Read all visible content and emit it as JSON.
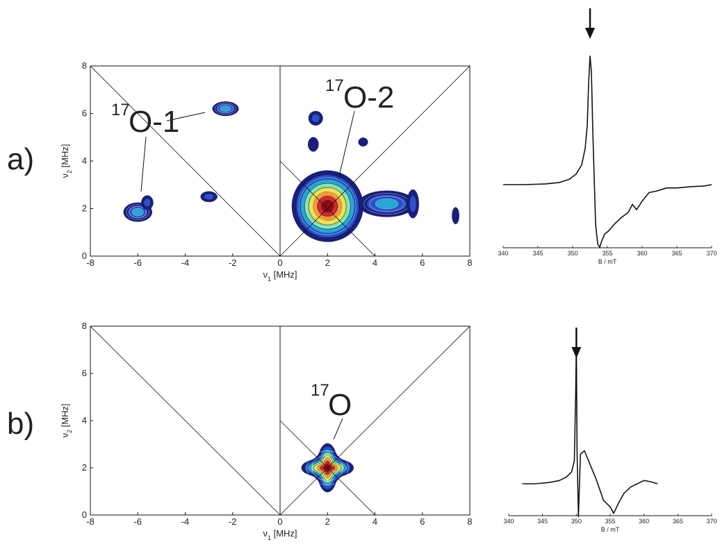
{
  "panels": [
    {
      "label": "a)",
      "annotations": [
        {
          "sup": "17",
          "text": "O-1"
        },
        {
          "sup": "17",
          "text": "O-2"
        }
      ]
    },
    {
      "label": "b)",
      "annotations": [
        {
          "sup": "17",
          "text": "O"
        }
      ]
    }
  ],
  "chart_data": [
    {
      "type": "contour",
      "panel": "a)",
      "xlabel_main": "ν",
      "xlabel_sub": "1",
      "xlabel_unit": " [MHz]",
      "ylabel_main": "ν",
      "ylabel_sub": "2",
      "ylabel_unit": " [MHz]",
      "xlim": [
        -8,
        8
      ],
      "ylim": [
        0,
        8
      ],
      "xticks": [
        "-8",
        "-6",
        "-4",
        "-2",
        "0",
        "2",
        "4",
        "6",
        "8"
      ],
      "yticks": [
        "0",
        "2",
        "4",
        "6",
        "8"
      ],
      "colors": [
        "#1a1f7a",
        "#2b52c7",
        "#24a7d6",
        "#7fe0a0",
        "#f3e24a",
        "#f29a2e",
        "#d8262b",
        "#8a1010"
      ],
      "peaks": [
        {
          "x": -2.3,
          "y": 6.2,
          "rx": 0.55,
          "ry": 0.3,
          "levels": 3
        },
        {
          "x": -6.0,
          "y": 1.85,
          "rx": 0.6,
          "ry": 0.4,
          "levels": 3
        },
        {
          "x": -5.6,
          "y": 2.25,
          "rx": 0.25,
          "ry": 0.3,
          "levels": 2
        },
        {
          "x": -3.0,
          "y": 2.5,
          "rx": 0.35,
          "ry": 0.22,
          "levels": 2
        },
        {
          "x": 1.5,
          "y": 5.8,
          "rx": 0.3,
          "ry": 0.3,
          "levels": 2
        },
        {
          "x": 3.5,
          "y": 4.8,
          "rx": 0.2,
          "ry": 0.18,
          "levels": 1
        },
        {
          "x": 1.4,
          "y": 4.7,
          "rx": 0.22,
          "ry": 0.3,
          "levels": 1
        },
        {
          "x": 2.0,
          "y": 2.1,
          "rx": 1.5,
          "ry": 1.5,
          "levels": 8
        },
        {
          "x": 4.5,
          "y": 2.2,
          "rx": 1.2,
          "ry": 0.55,
          "levels": 3
        },
        {
          "x": 5.6,
          "y": 2.2,
          "rx": 0.25,
          "ry": 0.6,
          "levels": 2
        },
        {
          "x": 7.4,
          "y": 1.7,
          "rx": 0.15,
          "ry": 0.35,
          "levels": 1
        }
      ]
    },
    {
      "type": "line",
      "panel": "a)",
      "xlabel": "B / mT",
      "xlim": [
        340,
        370
      ],
      "xticks": [
        "340",
        "345",
        "350",
        "355",
        "360",
        "365",
        "370"
      ],
      "marker_field": 352.5,
      "x": [
        340,
        343,
        346,
        348,
        349.5,
        350.5,
        351.3,
        351.8,
        352.1,
        352.3,
        352.5,
        352.7,
        352.9,
        353.1,
        353.3,
        353.6,
        353.9,
        354.2,
        354.6,
        355.2,
        356,
        357,
        358,
        358.6,
        359.2,
        360,
        361,
        362,
        363.5,
        365,
        367,
        369,
        370
      ],
      "y": [
        0,
        0,
        0.01,
        0.03,
        0.08,
        0.16,
        0.3,
        0.55,
        0.9,
        1.55,
        1.95,
        1.7,
        0.8,
        0.1,
        -0.6,
        -0.9,
        -0.95,
        -0.85,
        -0.75,
        -0.7,
        -0.6,
        -0.5,
        -0.42,
        -0.3,
        -0.38,
        -0.25,
        -0.12,
        -0.1,
        -0.05,
        -0.05,
        -0.03,
        -0.02,
        0.0
      ]
    },
    {
      "type": "contour",
      "panel": "b)",
      "xlabel_main": "ν",
      "xlabel_sub": "1",
      "xlabel_unit": " [MHz]",
      "ylabel_main": "ν",
      "ylabel_sub": "2",
      "ylabel_unit": " [MHz]",
      "xlim": [
        -8,
        8
      ],
      "ylim": [
        0,
        8
      ],
      "xticks": [
        "-8",
        "-6",
        "-4",
        "-2",
        "0",
        "2",
        "4",
        "6",
        "8"
      ],
      "yticks": [
        "0",
        "2",
        "4",
        "6",
        "8"
      ],
      "colors": [
        "#1a1f7a",
        "#2b52c7",
        "#24a7d6",
        "#7fe0a0",
        "#f3e24a",
        "#f29a2e",
        "#d8262b",
        "#8a1010"
      ],
      "peaks": [
        {
          "x": 2.0,
          "y": 2.0,
          "rx": 1.1,
          "ry": 0.9,
          "levels": 8,
          "shape": "star"
        }
      ]
    },
    {
      "type": "line",
      "panel": "b)",
      "xlabel": "B / mT",
      "xlim": [
        340,
        370
      ],
      "xticks": [
        "340",
        "345",
        "350",
        "355",
        "360",
        "365",
        "370"
      ],
      "marker_field": 350.0,
      "x": [
        342,
        344,
        346,
        347.5,
        348.5,
        349.3,
        349.7,
        349.9,
        350.0,
        350.1,
        350.3,
        350.6,
        351.2,
        352,
        353,
        354,
        355,
        355.5,
        356.2,
        357,
        358,
        359,
        360,
        361,
        362
      ],
      "y": [
        0,
        0,
        0.02,
        0.05,
        0.1,
        0.18,
        0.35,
        1.4,
        2.2,
        0.5,
        -0.5,
        0.45,
        0.5,
        0.3,
        0.05,
        -0.25,
        -0.35,
        -0.45,
        -0.3,
        -0.15,
        -0.05,
        0.0,
        0.05,
        0.03,
        0.0
      ]
    }
  ]
}
